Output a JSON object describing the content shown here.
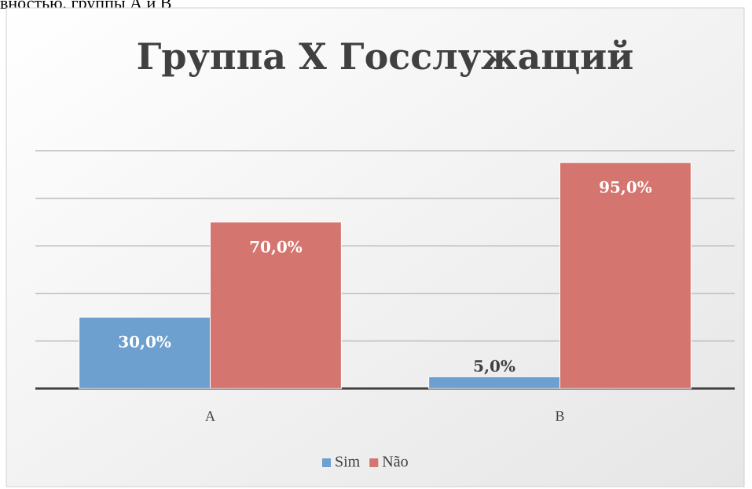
{
  "above_text": "вностью, группы А и В",
  "chart_data": {
    "type": "bar",
    "title": "Группа X Госслужащий",
    "categories": [
      "A",
      "B"
    ],
    "series": [
      {
        "name": "Sim",
        "color": "#6d9fcf",
        "values": [
          30,
          5
        ],
        "value_labels": [
          "30,0%",
          "5,0%"
        ]
      },
      {
        "name": "Não",
        "color": "#d4756f",
        "values": [
          70,
          95
        ],
        "value_labels": [
          "70,0%",
          "95,0%"
        ]
      }
    ],
    "ylim": [
      0,
      100
    ],
    "yticks": [
      0,
      20,
      40,
      60,
      80,
      100
    ],
    "grid": true,
    "legend": "bottom"
  }
}
